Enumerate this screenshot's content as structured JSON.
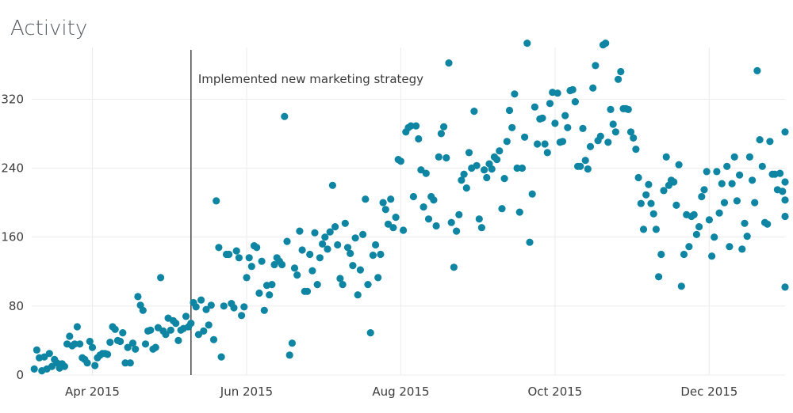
{
  "chart_data": {
    "type": "scatter",
    "title": "Activity",
    "xlabel": "",
    "ylabel": "",
    "xlim": [
      "2015-03-08",
      "2015-12-31"
    ],
    "ylim": [
      0,
      380
    ],
    "grid": true,
    "legend": "none",
    "marker_color": "#0e85a2",
    "x_ticks": [
      {
        "label": "Apr 2015",
        "date": "2015-04-01"
      },
      {
        "label": "Jun 2015",
        "date": "2015-06-01"
      },
      {
        "label": "Aug 2015",
        "date": "2015-08-01"
      },
      {
        "label": "Oct 2015",
        "date": "2015-10-01"
      },
      {
        "label": "Dec 2015",
        "date": "2015-12-01"
      }
    ],
    "y_ticks": [
      0,
      80,
      160,
      240,
      320
    ],
    "annotation": {
      "text": "Implemented new marketing strategy",
      "date": "2015-05-10"
    },
    "points": [
      [
        "2015-03-09",
        7
      ],
      [
        "2015-03-10",
        29
      ],
      [
        "2015-03-11",
        20
      ],
      [
        "2015-03-12",
        5
      ],
      [
        "2015-03-13",
        21
      ],
      [
        "2015-03-14",
        7
      ],
      [
        "2015-03-15",
        25
      ],
      [
        "2015-03-16",
        10
      ],
      [
        "2015-03-17",
        18
      ],
      [
        "2015-03-18",
        14
      ],
      [
        "2015-03-19",
        8
      ],
      [
        "2015-03-20",
        13
      ],
      [
        "2015-03-21",
        10
      ],
      [
        "2015-03-22",
        36
      ],
      [
        "2015-03-23",
        45
      ],
      [
        "2015-03-24",
        34
      ],
      [
        "2015-03-25",
        36
      ],
      [
        "2015-03-26",
        56
      ],
      [
        "2015-03-27",
        36
      ],
      [
        "2015-03-28",
        20
      ],
      [
        "2015-03-29",
        18
      ],
      [
        "2015-03-30",
        14
      ],
      [
        "2015-03-31",
        39
      ],
      [
        "2015-04-01",
        32
      ],
      [
        "2015-04-02",
        11
      ],
      [
        "2015-04-03",
        20
      ],
      [
        "2015-04-04",
        23
      ],
      [
        "2015-04-05",
        25
      ],
      [
        "2015-04-06",
        25
      ],
      [
        "2015-04-07",
        24
      ],
      [
        "2015-04-08",
        38
      ],
      [
        "2015-04-09",
        56
      ],
      [
        "2015-04-10",
        53
      ],
      [
        "2015-04-11",
        40
      ],
      [
        "2015-04-12",
        39
      ],
      [
        "2015-04-13",
        49
      ],
      [
        "2015-04-14",
        14
      ],
      [
        "2015-04-15",
        32
      ],
      [
        "2015-04-16",
        14
      ],
      [
        "2015-04-17",
        37
      ],
      [
        "2015-04-18",
        30
      ],
      [
        "2015-04-19",
        91
      ],
      [
        "2015-04-20",
        81
      ],
      [
        "2015-04-21",
        75
      ],
      [
        "2015-04-22",
        36
      ],
      [
        "2015-04-23",
        51
      ],
      [
        "2015-04-24",
        52
      ],
      [
        "2015-04-25",
        30
      ],
      [
        "2015-04-26",
        32
      ],
      [
        "2015-04-27",
        55
      ],
      [
        "2015-04-28",
        113
      ],
      [
        "2015-04-29",
        51
      ],
      [
        "2015-04-30",
        47
      ],
      [
        "2015-05-01",
        66
      ],
      [
        "2015-05-02",
        52
      ],
      [
        "2015-05-03",
        63
      ],
      [
        "2015-05-04",
        60
      ],
      [
        "2015-05-05",
        40
      ],
      [
        "2015-05-06",
        52
      ],
      [
        "2015-05-07",
        54
      ],
      [
        "2015-05-08",
        68
      ],
      [
        "2015-05-09",
        56
      ],
      [
        "2015-05-10",
        60
      ],
      [
        "2015-05-11",
        84
      ],
      [
        "2015-05-12",
        79
      ],
      [
        "2015-05-13",
        47
      ],
      [
        "2015-05-14",
        87
      ],
      [
        "2015-05-15",
        51
      ],
      [
        "2015-05-16",
        76
      ],
      [
        "2015-05-17",
        58
      ],
      [
        "2015-05-18",
        81
      ],
      [
        "2015-05-19",
        41
      ],
      [
        "2015-05-20",
        202
      ],
      [
        "2015-05-21",
        148
      ],
      [
        "2015-05-22",
        21
      ],
      [
        "2015-05-23",
        80
      ],
      [
        "2015-05-24",
        140
      ],
      [
        "2015-05-25",
        140
      ],
      [
        "2015-05-26",
        83
      ],
      [
        "2015-05-27",
        78
      ],
      [
        "2015-05-28",
        144
      ],
      [
        "2015-05-29",
        136
      ],
      [
        "2015-05-30",
        69
      ],
      [
        "2015-05-31",
        79
      ],
      [
        "2015-06-01",
        113
      ],
      [
        "2015-06-02",
        136
      ],
      [
        "2015-06-03",
        126
      ],
      [
        "2015-06-04",
        150
      ],
      [
        "2015-06-05",
        148
      ],
      [
        "2015-06-06",
        95
      ],
      [
        "2015-06-07",
        132
      ],
      [
        "2015-06-08",
        75
      ],
      [
        "2015-06-09",
        104
      ],
      [
        "2015-06-10",
        93
      ],
      [
        "2015-06-11",
        105
      ],
      [
        "2015-06-12",
        128
      ],
      [
        "2015-06-13",
        136
      ],
      [
        "2015-06-14",
        132
      ],
      [
        "2015-06-15",
        128
      ],
      [
        "2015-06-16",
        300
      ],
      [
        "2015-06-17",
        155
      ],
      [
        "2015-06-18",
        23
      ],
      [
        "2015-06-19",
        37
      ],
      [
        "2015-06-20",
        124
      ],
      [
        "2015-06-21",
        116
      ],
      [
        "2015-06-22",
        167
      ],
      [
        "2015-06-23",
        145
      ],
      [
        "2015-06-24",
        97
      ],
      [
        "2015-06-25",
        97
      ],
      [
        "2015-06-26",
        140
      ],
      [
        "2015-06-27",
        121
      ],
      [
        "2015-06-28",
        165
      ],
      [
        "2015-06-29",
        105
      ],
      [
        "2015-06-30",
        136
      ],
      [
        "2015-07-01",
        152
      ],
      [
        "2015-07-02",
        160
      ],
      [
        "2015-07-03",
        146
      ],
      [
        "2015-07-04",
        166
      ],
      [
        "2015-07-05",
        220
      ],
      [
        "2015-07-06",
        172
      ],
      [
        "2015-07-07",
        151
      ],
      [
        "2015-07-08",
        112
      ],
      [
        "2015-07-09",
        105
      ],
      [
        "2015-07-10",
        176
      ],
      [
        "2015-07-11",
        148
      ],
      [
        "2015-07-12",
        141
      ],
      [
        "2015-07-13",
        127
      ],
      [
        "2015-07-14",
        159
      ],
      [
        "2015-07-15",
        93
      ],
      [
        "2015-07-16",
        122
      ],
      [
        "2015-07-17",
        163
      ],
      [
        "2015-07-18",
        204
      ],
      [
        "2015-07-19",
        105
      ],
      [
        "2015-07-20",
        49
      ],
      [
        "2015-07-21",
        139
      ],
      [
        "2015-07-22",
        151
      ],
      [
        "2015-07-23",
        113
      ],
      [
        "2015-07-24",
        140
      ],
      [
        "2015-07-25",
        200
      ],
      [
        "2015-07-26",
        192
      ],
      [
        "2015-07-27",
        175
      ],
      [
        "2015-07-28",
        204
      ],
      [
        "2015-07-29",
        171
      ],
      [
        "2015-07-30",
        183
      ],
      [
        "2015-07-31",
        250
      ],
      [
        "2015-08-01",
        248
      ],
      [
        "2015-08-02",
        168
      ],
      [
        "2015-08-03",
        282
      ],
      [
        "2015-08-04",
        287
      ],
      [
        "2015-08-05",
        289
      ],
      [
        "2015-08-06",
        207
      ],
      [
        "2015-08-07",
        289
      ],
      [
        "2015-08-08",
        274
      ],
      [
        "2015-08-09",
        238
      ],
      [
        "2015-08-10",
        195
      ],
      [
        "2015-08-11",
        234
      ],
      [
        "2015-08-12",
        181
      ],
      [
        "2015-08-13",
        207
      ],
      [
        "2015-08-14",
        203
      ],
      [
        "2015-08-15",
        173
      ],
      [
        "2015-08-16",
        253
      ],
      [
        "2015-08-17",
        280
      ],
      [
        "2015-08-18",
        288
      ],
      [
        "2015-08-19",
        252
      ],
      [
        "2015-08-20",
        362
      ],
      [
        "2015-08-21",
        177
      ],
      [
        "2015-08-22",
        125
      ],
      [
        "2015-08-23",
        167
      ],
      [
        "2015-08-24",
        186
      ],
      [
        "2015-08-25",
        226
      ],
      [
        "2015-08-26",
        233
      ],
      [
        "2015-08-27",
        217
      ],
      [
        "2015-08-28",
        258
      ],
      [
        "2015-08-29",
        240
      ],
      [
        "2015-08-30",
        306
      ],
      [
        "2015-08-31",
        243
      ],
      [
        "2015-09-01",
        181
      ],
      [
        "2015-09-02",
        171
      ],
      [
        "2015-09-03",
        238
      ],
      [
        "2015-09-04",
        229
      ],
      [
        "2015-09-05",
        245
      ],
      [
        "2015-09-06",
        239
      ],
      [
        "2015-09-07",
        253
      ],
      [
        "2015-09-08",
        250
      ],
      [
        "2015-09-09",
        260
      ],
      [
        "2015-09-10",
        193
      ],
      [
        "2015-09-11",
        228
      ],
      [
        "2015-09-12",
        271
      ],
      [
        "2015-09-13",
        307
      ],
      [
        "2015-09-14",
        287
      ],
      [
        "2015-09-15",
        326
      ],
      [
        "2015-09-16",
        240
      ],
      [
        "2015-09-17",
        189
      ],
      [
        "2015-09-18",
        240
      ],
      [
        "2015-09-19",
        276
      ],
      [
        "2015-09-20",
        385
      ],
      [
        "2015-09-21",
        154
      ],
      [
        "2015-09-22",
        210
      ],
      [
        "2015-09-23",
        311
      ],
      [
        "2015-09-24",
        268
      ],
      [
        "2015-09-25",
        297
      ],
      [
        "2015-09-26",
        298
      ],
      [
        "2015-09-27",
        268
      ],
      [
        "2015-09-28",
        258
      ],
      [
        "2015-09-29",
        315
      ],
      [
        "2015-09-30",
        328
      ],
      [
        "2015-10-01",
        292
      ],
      [
        "2015-10-02",
        327
      ],
      [
        "2015-10-03",
        270
      ],
      [
        "2015-10-04",
        271
      ],
      [
        "2015-10-05",
        301
      ],
      [
        "2015-10-06",
        287
      ],
      [
        "2015-10-07",
        330
      ],
      [
        "2015-10-08",
        331
      ],
      [
        "2015-10-09",
        317
      ],
      [
        "2015-10-10",
        242
      ],
      [
        "2015-10-11",
        242
      ],
      [
        "2015-10-12",
        286
      ],
      [
        "2015-10-13",
        249
      ],
      [
        "2015-10-14",
        239
      ],
      [
        "2015-10-15",
        265
      ],
      [
        "2015-10-16",
        333
      ],
      [
        "2015-10-17",
        359
      ],
      [
        "2015-10-18",
        272
      ],
      [
        "2015-10-19",
        277
      ],
      [
        "2015-10-20",
        383
      ],
      [
        "2015-10-21",
        385
      ],
      [
        "2015-10-22",
        270
      ],
      [
        "2015-10-23",
        308
      ],
      [
        "2015-10-24",
        291
      ],
      [
        "2015-10-25",
        282
      ],
      [
        "2015-10-26",
        343
      ],
      [
        "2015-10-27",
        352
      ],
      [
        "2015-10-28",
        309
      ],
      [
        "2015-10-29",
        309
      ],
      [
        "2015-10-30",
        308
      ],
      [
        "2015-10-31",
        282
      ],
      [
        "2015-11-01",
        275
      ],
      [
        "2015-11-02",
        262
      ],
      [
        "2015-11-03",
        229
      ],
      [
        "2015-11-04",
        199
      ],
      [
        "2015-11-05",
        169
      ],
      [
        "2015-11-06",
        209
      ],
      [
        "2015-11-07",
        221
      ],
      [
        "2015-11-08",
        199
      ],
      [
        "2015-11-09",
        187
      ],
      [
        "2015-11-10",
        169
      ],
      [
        "2015-11-11",
        114
      ],
      [
        "2015-11-12",
        140
      ],
      [
        "2015-11-13",
        214
      ],
      [
        "2015-11-14",
        253
      ],
      [
        "2015-11-15",
        220
      ],
      [
        "2015-11-16",
        226
      ],
      [
        "2015-11-17",
        224
      ],
      [
        "2015-11-18",
        197
      ],
      [
        "2015-11-19",
        244
      ],
      [
        "2015-11-20",
        103
      ],
      [
        "2015-11-21",
        140
      ],
      [
        "2015-11-22",
        186
      ],
      [
        "2015-11-23",
        149
      ],
      [
        "2015-11-24",
        184
      ],
      [
        "2015-11-25",
        186
      ],
      [
        "2015-11-26",
        163
      ],
      [
        "2015-11-27",
        172
      ],
      [
        "2015-11-28",
        207
      ],
      [
        "2015-11-29",
        215
      ],
      [
        "2015-11-30",
        236
      ],
      [
        "2015-12-01",
        180
      ],
      [
        "2015-12-02",
        138
      ],
      [
        "2015-12-03",
        160
      ],
      [
        "2015-12-04",
        236
      ],
      [
        "2015-12-05",
        188
      ],
      [
        "2015-12-06",
        222
      ],
      [
        "2015-12-07",
        200
      ],
      [
        "2015-12-08",
        242
      ],
      [
        "2015-12-09",
        149
      ],
      [
        "2015-12-10",
        222
      ],
      [
        "2015-12-11",
        253
      ],
      [
        "2015-12-12",
        202
      ],
      [
        "2015-12-13",
        232
      ],
      [
        "2015-12-14",
        146
      ],
      [
        "2015-12-15",
        176
      ],
      [
        "2015-12-16",
        161
      ],
      [
        "2015-12-17",
        253
      ],
      [
        "2015-12-18",
        226
      ],
      [
        "2015-12-19",
        200
      ],
      [
        "2015-12-20",
        353
      ],
      [
        "2015-12-21",
        273
      ],
      [
        "2015-12-22",
        242
      ],
      [
        "2015-12-23",
        177
      ],
      [
        "2015-12-24",
        175
      ],
      [
        "2015-12-25",
        271
      ],
      [
        "2015-12-26",
        233
      ],
      [
        "2015-12-27",
        233
      ],
      [
        "2015-12-28",
        215
      ],
      [
        "2015-12-29",
        234
      ],
      [
        "2015-12-30",
        213
      ],
      [
        "2015-12-31",
        224
      ],
      [
        "2015-12-31",
        282
      ],
      [
        "2015-12-31",
        184
      ],
      [
        "2015-12-31",
        203
      ],
      [
        "2015-12-31",
        102
      ]
    ]
  }
}
